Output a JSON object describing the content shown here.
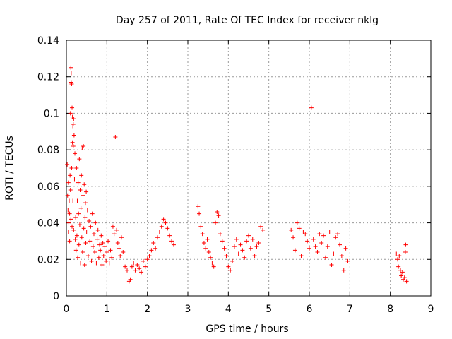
{
  "chart_data": {
    "type": "scatter",
    "title": "Day 257 of 2011, Rate Of TEC Index for receiver nklg",
    "xlabel": "GPS time / hours",
    "ylabel": "ROTI / TECUs",
    "xlim": [
      0,
      9
    ],
    "ylim": [
      0,
      0.14
    ],
    "x_ticks": [
      "0",
      "1",
      "2",
      "3",
      "4",
      "5",
      "6",
      "7",
      "8",
      "9"
    ],
    "y_ticks": [
      "0",
      "0.02",
      "0.04",
      "0.06",
      "0.08",
      "0.1",
      "0.12",
      "0.14"
    ],
    "grid": true,
    "marker": "+",
    "marker_color": "#ff0000",
    "series": [
      {
        "points": [
          [
            0.02,
            0.072
          ],
          [
            0.03,
            0.055
          ],
          [
            0.04,
            0.047
          ],
          [
            0.05,
            0.035
          ],
          [
            0.05,
            0.062
          ],
          [
            0.06,
            0.04
          ],
          [
            0.07,
            0.052
          ],
          [
            0.08,
            0.03
          ],
          [
            0.08,
            0.045
          ],
          [
            0.09,
            0.066
          ],
          [
            0.1,
            0.1
          ],
          [
            0.1,
            0.058
          ],
          [
            0.11,
            0.125
          ],
          [
            0.11,
            0.042
          ],
          [
            0.12,
            0.122
          ],
          [
            0.12,
            0.117
          ],
          [
            0.13,
            0.116
          ],
          [
            0.13,
            0.07
          ],
          [
            0.14,
            0.103
          ],
          [
            0.14,
            0.038
          ],
          [
            0.15,
            0.098
          ],
          [
            0.15,
            0.084
          ],
          [
            0.16,
            0.093
          ],
          [
            0.16,
            0.052
          ],
          [
            0.17,
            0.094
          ],
          [
            0.17,
            0.082
          ],
          [
            0.18,
            0.097
          ],
          [
            0.18,
            0.036
          ],
          [
            0.19,
            0.088
          ],
          [
            0.2,
            0.064
          ],
          [
            0.21,
            0.078
          ],
          [
            0.22,
            0.031
          ],
          [
            0.23,
            0.043
          ],
          [
            0.24,
            0.025
          ],
          [
            0.25,
            0.07
          ],
          [
            0.26,
            0.033
          ],
          [
            0.27,
            0.052
          ],
          [
            0.28,
            0.021
          ],
          [
            0.29,
            0.062
          ],
          [
            0.3,
            0.045
          ],
          [
            0.31,
            0.028
          ],
          [
            0.32,
            0.075
          ],
          [
            0.33,
            0.039
          ],
          [
            0.34,
            0.058
          ],
          [
            0.35,
            0.018
          ],
          [
            0.36,
            0.048
          ],
          [
            0.37,
            0.066
          ],
          [
            0.38,
            0.032
          ],
          [
            0.39,
            0.081
          ],
          [
            0.4,
            0.024
          ],
          [
            0.41,
            0.055
          ],
          [
            0.42,
            0.082
          ],
          [
            0.43,
            0.037
          ],
          [
            0.44,
            0.061
          ],
          [
            0.45,
            0.017
          ],
          [
            0.46,
            0.043
          ],
          [
            0.47,
            0.051
          ],
          [
            0.48,
            0.029
          ],
          [
            0.49,
            0.057
          ],
          [
            0.5,
            0.035
          ],
          [
            0.52,
            0.047
          ],
          [
            0.54,
            0.022
          ],
          [
            0.56,
            0.041
          ],
          [
            0.58,
            0.03
          ],
          [
            0.6,
            0.038
          ],
          [
            0.62,
            0.019
          ],
          [
            0.64,
            0.045
          ],
          [
            0.66,
            0.027
          ],
          [
            0.68,
            0.034
          ],
          [
            0.7,
            0.024
          ],
          [
            0.72,
            0.04
          ],
          [
            0.74,
            0.018
          ],
          [
            0.76,
            0.031
          ],
          [
            0.78,
            0.036
          ],
          [
            0.8,
            0.021
          ],
          [
            0.82,
            0.028
          ],
          [
            0.84,
            0.025
          ],
          [
            0.86,
            0.033
          ],
          [
            0.88,
            0.017
          ],
          [
            0.9,
            0.029
          ],
          [
            0.92,
            0.022
          ],
          [
            0.95,
            0.027
          ],
          [
            0.98,
            0.019
          ],
          [
            1.0,
            0.024
          ],
          [
            1.03,
            0.03
          ],
          [
            1.06,
            0.018
          ],
          [
            1.09,
            0.025
          ],
          [
            1.12,
            0.021
          ],
          [
            1.15,
            0.038
          ],
          [
            1.18,
            0.034
          ],
          [
            1.21,
            0.087
          ],
          [
            1.24,
            0.036
          ],
          [
            1.27,
            0.029
          ],
          [
            1.3,
            0.026
          ],
          [
            1.33,
            0.022
          ],
          [
            1.36,
            0.032
          ],
          [
            1.4,
            0.024
          ],
          [
            1.45,
            0.016
          ],
          [
            1.5,
            0.014
          ],
          [
            1.55,
            0.008
          ],
          [
            1.58,
            0.009
          ],
          [
            1.62,
            0.016
          ],
          [
            1.66,
            0.018
          ],
          [
            1.7,
            0.014
          ],
          [
            1.75,
            0.017
          ],
          [
            1.8,
            0.015
          ],
          [
            1.85,
            0.013
          ],
          [
            1.9,
            0.019
          ],
          [
            1.95,
            0.016
          ],
          [
            2.0,
            0.02
          ],
          [
            2.05,
            0.022
          ],
          [
            2.1,
            0.025
          ],
          [
            2.15,
            0.029
          ],
          [
            2.2,
            0.026
          ],
          [
            2.25,
            0.032
          ],
          [
            2.3,
            0.035
          ],
          [
            2.35,
            0.038
          ],
          [
            2.4,
            0.042
          ],
          [
            2.45,
            0.04
          ],
          [
            2.5,
            0.037
          ],
          [
            2.55,
            0.033
          ],
          [
            2.6,
            0.03
          ],
          [
            2.65,
            0.028
          ],
          [
            3.25,
            0.049
          ],
          [
            3.28,
            0.045
          ],
          [
            3.32,
            0.038
          ],
          [
            3.36,
            0.034
          ],
          [
            3.4,
            0.029
          ],
          [
            3.44,
            0.026
          ],
          [
            3.48,
            0.031
          ],
          [
            3.52,
            0.024
          ],
          [
            3.56,
            0.021
          ],
          [
            3.6,
            0.018
          ],
          [
            3.64,
            0.016
          ],
          [
            3.68,
            0.04
          ],
          [
            3.72,
            0.046
          ],
          [
            3.76,
            0.044
          ],
          [
            3.8,
            0.034
          ],
          [
            3.85,
            0.03
          ],
          [
            3.9,
            0.026
          ],
          [
            3.95,
            0.022
          ],
          [
            4.0,
            0.016
          ],
          [
            4.05,
            0.014
          ],
          [
            4.1,
            0.019
          ],
          [
            4.15,
            0.027
          ],
          [
            4.2,
            0.031
          ],
          [
            4.25,
            0.023
          ],
          [
            4.3,
            0.028
          ],
          [
            4.35,
            0.025
          ],
          [
            4.4,
            0.021
          ],
          [
            4.45,
            0.03
          ],
          [
            4.5,
            0.033
          ],
          [
            4.55,
            0.026
          ],
          [
            4.6,
            0.031
          ],
          [
            4.65,
            0.022
          ],
          [
            4.7,
            0.027
          ],
          [
            4.75,
            0.029
          ],
          [
            4.8,
            0.038
          ],
          [
            4.85,
            0.036
          ],
          [
            5.55,
            0.036
          ],
          [
            5.6,
            0.032
          ],
          [
            5.65,
            0.025
          ],
          [
            5.7,
            0.04
          ],
          [
            5.75,
            0.037
          ],
          [
            5.8,
            0.022
          ],
          [
            5.85,
            0.035
          ],
          [
            5.9,
            0.034
          ],
          [
            5.95,
            0.03
          ],
          [
            6.0,
            0.026
          ],
          [
            6.05,
            0.103
          ],
          [
            6.1,
            0.031
          ],
          [
            6.15,
            0.027
          ],
          [
            6.2,
            0.024
          ],
          [
            6.25,
            0.034
          ],
          [
            6.3,
            0.029
          ],
          [
            6.35,
            0.033
          ],
          [
            6.4,
            0.021
          ],
          [
            6.45,
            0.027
          ],
          [
            6.5,
            0.035
          ],
          [
            6.55,
            0.017
          ],
          [
            6.6,
            0.023
          ],
          [
            6.65,
            0.032
          ],
          [
            6.7,
            0.034
          ],
          [
            6.75,
            0.028
          ],
          [
            6.8,
            0.022
          ],
          [
            6.85,
            0.014
          ],
          [
            6.9,
            0.026
          ],
          [
            6.95,
            0.019
          ],
          [
            8.15,
            0.023
          ],
          [
            8.18,
            0.02
          ],
          [
            8.2,
            0.016
          ],
          [
            8.22,
            0.022
          ],
          [
            8.25,
            0.014
          ],
          [
            8.27,
            0.011
          ],
          [
            8.3,
            0.013
          ],
          [
            8.32,
            0.009
          ],
          [
            8.35,
            0.01
          ],
          [
            8.37,
            0.024
          ],
          [
            8.38,
            0.028
          ],
          [
            8.4,
            0.008
          ]
        ]
      }
    ]
  }
}
